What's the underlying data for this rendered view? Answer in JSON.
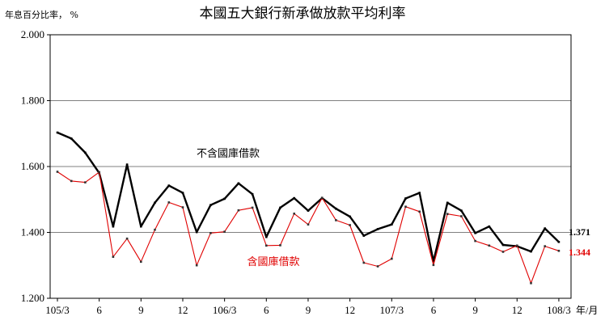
{
  "chart_data": {
    "type": "line",
    "title": "本國五大銀行新承做放款平均利率",
    "ylabel": "年息百分比率， %",
    "xlabel_suffix": "年/月",
    "ylim": [
      1.2,
      2.0
    ],
    "yticks": [
      "1.200",
      "1.400",
      "1.600",
      "1.800",
      "2.000"
    ],
    "ytick_values": [
      1.2,
      1.4,
      1.6,
      1.8,
      2.0
    ],
    "grid": true,
    "x_tick_labels": [
      {
        "index": 0,
        "label": "105/3"
      },
      {
        "index": 3,
        "label": "6"
      },
      {
        "index": 6,
        "label": "9"
      },
      {
        "index": 9,
        "label": "12"
      },
      {
        "index": 12,
        "label": "106/3"
      },
      {
        "index": 15,
        "label": "6"
      },
      {
        "index": 18,
        "label": "9"
      },
      {
        "index": 21,
        "label": "12"
      },
      {
        "index": 24,
        "label": "107/3"
      },
      {
        "index": 27,
        "label": "6"
      },
      {
        "index": 30,
        "label": "9"
      },
      {
        "index": 33,
        "label": "12"
      },
      {
        "index": 36,
        "label": "108/3"
      }
    ],
    "series": [
      {
        "name": "不含國庫借款",
        "color": "#000000",
        "end_label": "1.371",
        "values": [
          1.703,
          1.685,
          1.642,
          1.58,
          1.418,
          1.606,
          1.418,
          1.49,
          1.542,
          1.52,
          1.401,
          1.483,
          1.502,
          1.549,
          1.516,
          1.386,
          1.475,
          1.504,
          1.466,
          1.504,
          1.472,
          1.448,
          1.39,
          1.41,
          1.424,
          1.503,
          1.52,
          1.312,
          1.49,
          1.466,
          1.398,
          1.418,
          1.362,
          1.358,
          1.342,
          1.412,
          1.371
        ]
      },
      {
        "name": "含國庫借款",
        "color": "#e00000",
        "end_label": "1.344",
        "values": [
          1.584,
          1.556,
          1.552,
          1.583,
          1.326,
          1.381,
          1.311,
          1.408,
          1.491,
          1.476,
          1.3,
          1.398,
          1.402,
          1.467,
          1.475,
          1.36,
          1.361,
          1.457,
          1.424,
          1.505,
          1.437,
          1.422,
          1.308,
          1.297,
          1.32,
          1.478,
          1.463,
          1.301,
          1.456,
          1.449,
          1.374,
          1.36,
          1.341,
          1.36,
          1.246,
          1.358,
          1.344
        ]
      }
    ]
  }
}
